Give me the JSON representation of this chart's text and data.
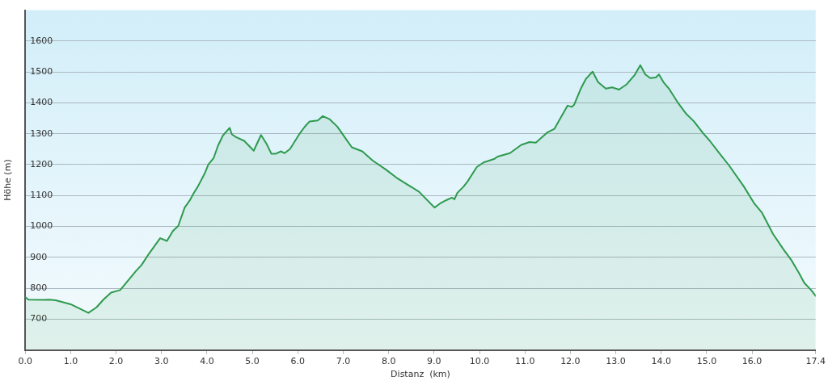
{
  "chart_data": {
    "type": "area",
    "xlabel": "Distanz  (km)",
    "ylabel": "Höhe (m)",
    "xlim": [
      0,
      17.4
    ],
    "ylim": [
      600,
      1700
    ],
    "xticks": [
      {
        "value": 0,
        "label": "0.0"
      },
      {
        "value": 1,
        "label": "1.0"
      },
      {
        "value": 2,
        "label": "2.0"
      },
      {
        "value": 3,
        "label": "3.0"
      },
      {
        "value": 4,
        "label": "4.0"
      },
      {
        "value": 5,
        "label": "5.0"
      },
      {
        "value": 6,
        "label": "6.0"
      },
      {
        "value": 7,
        "label": "7.0"
      },
      {
        "value": 8,
        "label": "8.0"
      },
      {
        "value": 9,
        "label": "9.0"
      },
      {
        "value": 10,
        "label": "10.0"
      },
      {
        "value": 11,
        "label": "11.0"
      },
      {
        "value": 12,
        "label": "12.0"
      },
      {
        "value": 13,
        "label": "13.0"
      },
      {
        "value": 14,
        "label": "14.0"
      },
      {
        "value": 15,
        "label": "15.0"
      },
      {
        "value": 16,
        "label": "16.0"
      },
      {
        "value": 17.4,
        "label": "17.4"
      }
    ],
    "yticks": [
      700,
      800,
      900,
      1000,
      1100,
      1200,
      1300,
      1400,
      1500,
      1600
    ],
    "grid": "y",
    "legend": false,
    "marker": "none",
    "line_style": "solid",
    "series": [
      {
        "color": "#2e9a4e",
        "x": [
          0,
          0.07,
          0.41,
          0.53,
          0.67,
          1.0,
          1.39,
          1.57,
          1.72,
          1.89,
          2.09,
          2.44,
          2.56,
          2.73,
          2.97,
          3.12,
          3.25,
          3.37,
          3.51,
          3.63,
          3.71,
          3.8,
          3.95,
          4.03,
          4.15,
          4.24,
          4.35,
          4.5,
          4.55,
          4.64,
          4.82,
          5.03,
          5.19,
          5.31,
          5.42,
          5.51,
          5.63,
          5.71,
          5.83,
          6.03,
          6.15,
          6.26,
          6.44,
          6.55,
          6.7,
          6.87,
          7.05,
          7.19,
          7.42,
          7.65,
          7.94,
          8.17,
          8.67,
          9.01,
          9.13,
          9.27,
          9.39,
          9.45,
          9.51,
          9.65,
          9.74,
          9.94,
          10.09,
          10.32,
          10.4,
          10.67,
          10.92,
          11.1,
          11.24,
          11.5,
          11.65,
          11.79,
          11.94,
          12.03,
          12.08,
          12.23,
          12.34,
          12.49,
          12.61,
          12.78,
          12.92,
          13.07,
          13.24,
          13.42,
          13.54,
          13.65,
          13.76,
          13.88,
          13.95,
          14.05,
          14.17,
          14.37,
          14.54,
          14.72,
          14.92,
          15.07,
          15.27,
          15.5,
          15.82,
          16.05,
          16.22,
          16.46,
          16.69,
          16.86,
          17.03,
          17.15,
          17.3,
          17.4
        ],
        "values": [
          771,
          763,
          762,
          763,
          761,
          748,
          720,
          738,
          763,
          786,
          794,
          856,
          875,
          913,
          962,
          953,
          985,
          1002,
          1061,
          1086,
          1108,
          1129,
          1171,
          1200,
          1222,
          1260,
          1294,
          1319,
          1298,
          1289,
          1277,
          1245,
          1296,
          1268,
          1235,
          1235,
          1243,
          1237,
          1251,
          1298,
          1322,
          1340,
          1343,
          1357,
          1347,
          1323,
          1285,
          1256,
          1243,
          1213,
          1184,
          1158,
          1112,
          1061,
          1074,
          1085,
          1093,
          1088,
          1108,
          1129,
          1146,
          1192,
          1207,
          1218,
          1226,
          1237,
          1264,
          1273,
          1271,
          1305,
          1316,
          1353,
          1391,
          1387,
          1393,
          1446,
          1477,
          1501,
          1467,
          1446,
          1450,
          1443,
          1460,
          1491,
          1522,
          1492,
          1480,
          1482,
          1492,
          1467,
          1446,
          1400,
          1366,
          1340,
          1302,
          1277,
          1239,
          1196,
          1129,
          1074,
          1044,
          976,
          926,
          892,
          850,
          817,
          794,
          775
        ]
      }
    ]
  }
}
